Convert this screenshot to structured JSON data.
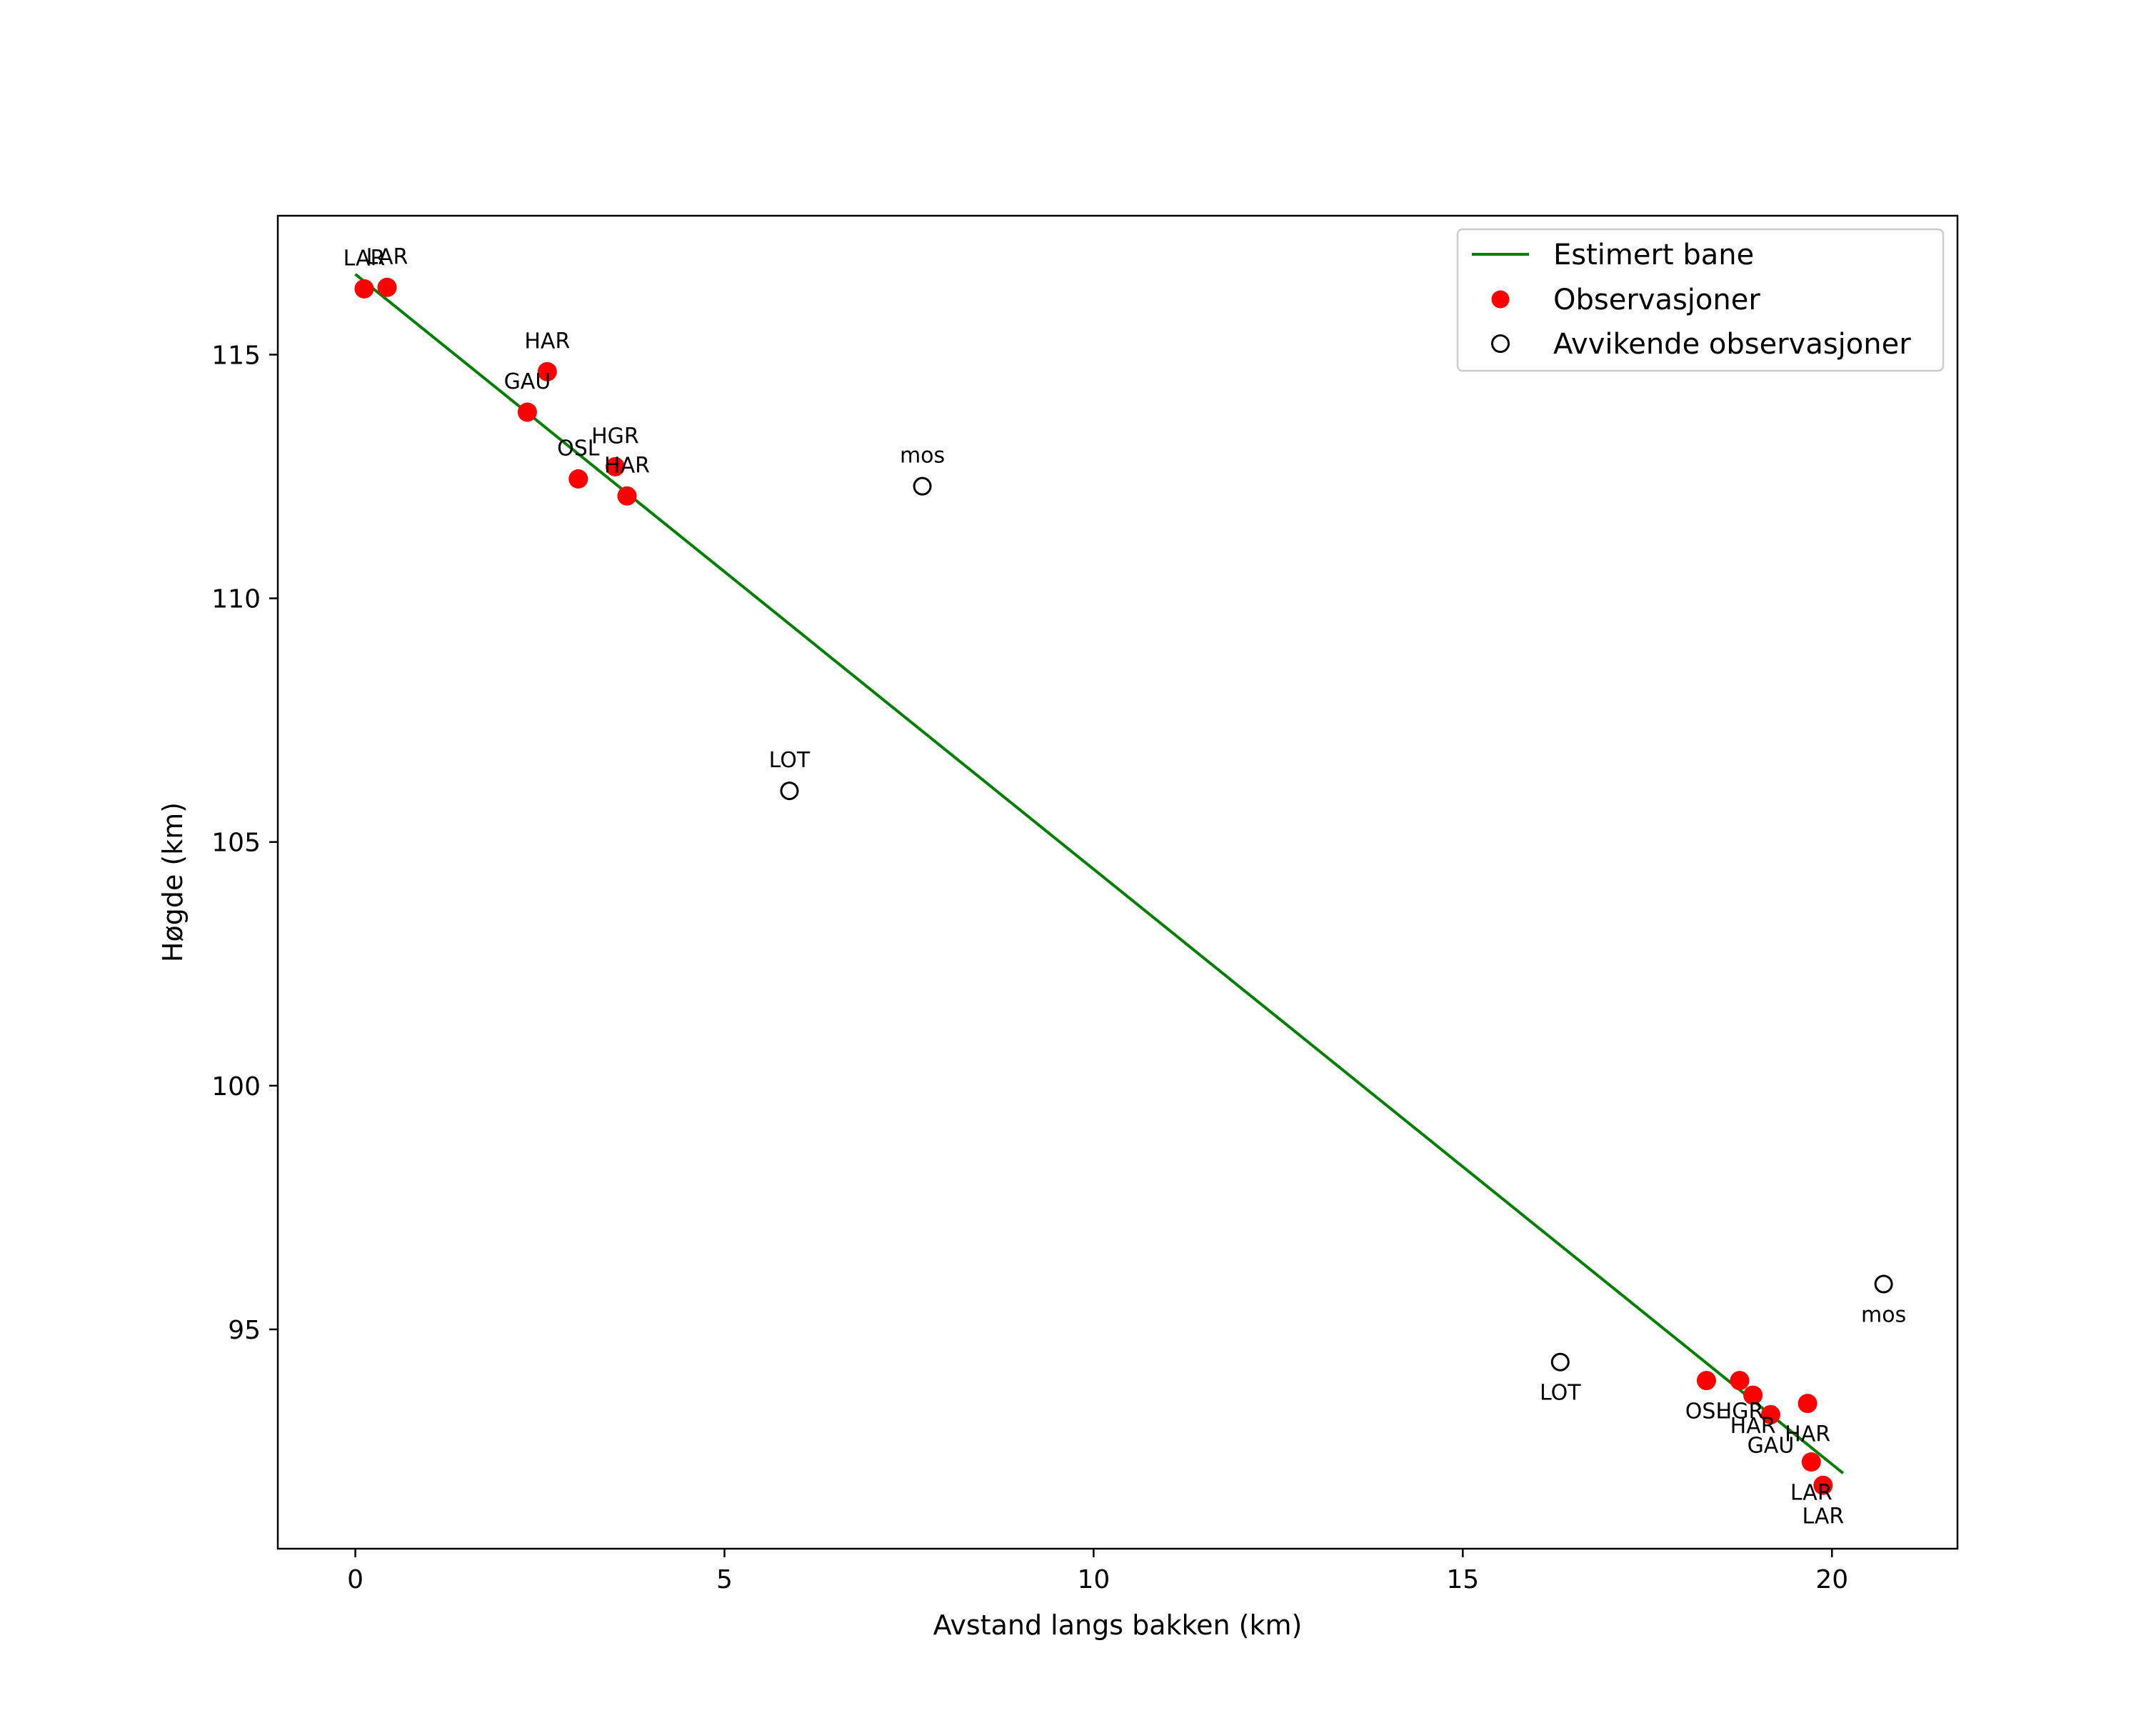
{
  "chart_data": {
    "type": "scatter",
    "title": "",
    "xlabel": "Avstand langs bakken (km)",
    "ylabel": "Høgde (km)",
    "xlim": [
      -1.05,
      21.7
    ],
    "ylim": [
      90.5,
      117.85
    ],
    "xticks": [
      0,
      5,
      10,
      15,
      20
    ],
    "yticks": [
      95,
      100,
      105,
      110,
      115
    ],
    "grid": false,
    "legend_position": "top-right",
    "line": {
      "name": "Estimert bane",
      "color": "#008000",
      "x": [
        0,
        20.15
      ],
      "y": [
        116.65,
        92.05
      ]
    },
    "observations": {
      "name": "Observasjoner",
      "color": "#ff0000",
      "points": [
        {
          "x": 0.12,
          "y": 116.35,
          "label": "LAR",
          "label_pos": "above"
        },
        {
          "x": 0.43,
          "y": 116.38,
          "label": "LAR",
          "label_pos": "above"
        },
        {
          "x": 2.6,
          "y": 114.65,
          "label": "HAR",
          "label_pos": "above"
        },
        {
          "x": 2.33,
          "y": 113.82,
          "label": "GAU",
          "label_pos": "above"
        },
        {
          "x": 3.02,
          "y": 112.45,
          "label": "OSL",
          "label_pos": "above"
        },
        {
          "x": 3.52,
          "y": 112.7,
          "label": "HGR",
          "label_pos": "above"
        },
        {
          "x": 3.68,
          "y": 112.1,
          "label": "HAR",
          "label_pos": "above"
        },
        {
          "x": 18.3,
          "y": 93.95,
          "label": "OSL",
          "label_pos": "below"
        },
        {
          "x": 18.75,
          "y": 93.95,
          "label": "HGR",
          "label_pos": "below"
        },
        {
          "x": 18.93,
          "y": 93.65,
          "label": "HAR",
          "label_pos": "below"
        },
        {
          "x": 19.17,
          "y": 93.25,
          "label": "GAU",
          "label_pos": "below"
        },
        {
          "x": 19.67,
          "y": 93.48,
          "label": "HAR",
          "label_pos": "below"
        },
        {
          "x": 19.72,
          "y": 92.28,
          "label": "LAR",
          "label_pos": "below"
        },
        {
          "x": 19.88,
          "y": 91.8,
          "label": "LAR",
          "label_pos": "below"
        }
      ]
    },
    "outliers": {
      "name": "Avvikende observasjoner",
      "color": "#000000",
      "points": [
        {
          "x": 7.68,
          "y": 112.3,
          "label": "mos",
          "label_pos": "above"
        },
        {
          "x": 5.88,
          "y": 106.05,
          "label": "LOT",
          "label_pos": "above"
        },
        {
          "x": 16.32,
          "y": 94.33,
          "label": "LOT",
          "label_pos": "below"
        },
        {
          "x": 20.7,
          "y": 95.93,
          "label": "mos",
          "label_pos": "below"
        }
      ]
    }
  }
}
